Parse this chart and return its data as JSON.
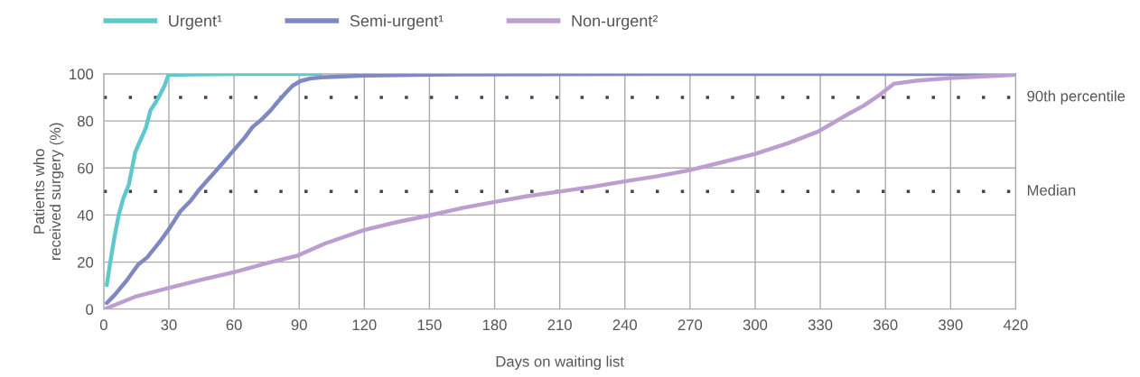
{
  "chart_data": {
    "type": "line",
    "xlabel": "Days on waiting list",
    "ylabel": "Patients who\nreceived surgery (%)",
    "xlim": [
      0,
      420
    ],
    "xticks": [
      0,
      30,
      60,
      90,
      120,
      150,
      180,
      210,
      240,
      270,
      300,
      330,
      360,
      390,
      420
    ],
    "ylim": [
      0,
      100
    ],
    "yticks": [
      0,
      20,
      40,
      60,
      80,
      100
    ],
    "grid": true,
    "legend": "top left",
    "marker": "none",
    "line_style": "solid",
    "ref_lines": [
      {
        "axis": "y",
        "value": 90,
        "label": "90th percentile",
        "line_style": "dotted",
        "color": "#444444"
      },
      {
        "axis": "y",
        "value": 50,
        "label": "Median",
        "line_style": "dotted",
        "color": "#444444"
      }
    ],
    "series": [
      {
        "name": "Urgent¹",
        "color": "#5ec8cc",
        "x": [
          1.4,
          3,
          5,
          6.9,
          9,
          11.6,
          14.5,
          16.5,
          19.4,
          21.5,
          24,
          26,
          28,
          29.8,
          40,
          60,
          100
        ],
        "values": [
          10.2,
          20,
          31,
          40,
          47,
          53,
          66.8,
          71,
          77,
          84.5,
          88,
          91.3,
          95,
          99.6,
          99.8,
          100,
          100
        ]
      },
      {
        "name": "Semi-urgent¹",
        "color": "#8088c4",
        "x": [
          1.4,
          5,
          10.4,
          15.9,
          20,
          25.6,
          30,
          35.3,
          40,
          43.7,
          48,
          53.3,
          60.3,
          65,
          68.6,
          72,
          76.9,
          80,
          83.9,
          87,
          90.7,
          95,
          100,
          120,
          150,
          250,
          420
        ],
        "values": [
          2.6,
          6,
          12,
          19,
          22,
          28.4,
          34,
          41.6,
          46,
          50.5,
          55,
          60.5,
          68,
          73,
          77.5,
          80,
          84.5,
          88,
          92,
          95,
          97,
          98,
          98.5,
          99.3,
          99.7,
          100,
          100
        ]
      },
      {
        "name": "Non-urgent²",
        "color": "#bc9fd0",
        "x": [
          1.4,
          14.5,
          29.8,
          45,
          60.3,
          75,
          89.4,
          101.9,
          119.8,
          135,
          149.7,
          165,
          179.5,
          195,
          210,
          225,
          239.8,
          255,
          269.5,
          285,
          300,
          315,
          329,
          343,
          350,
          356.8,
          363.8,
          375,
          390,
          419
        ],
        "values": [
          0.4,
          5.3,
          9,
          12.5,
          15.8,
          19.5,
          22.8,
          27.9,
          33.6,
          37,
          39.8,
          43,
          45.5,
          48,
          50,
          52,
          54.3,
          56.5,
          59,
          62.5,
          66,
          70.5,
          75.5,
          83,
          86.5,
          90.7,
          95.8,
          97.2,
          98.2,
          99.6
        ]
      }
    ]
  }
}
